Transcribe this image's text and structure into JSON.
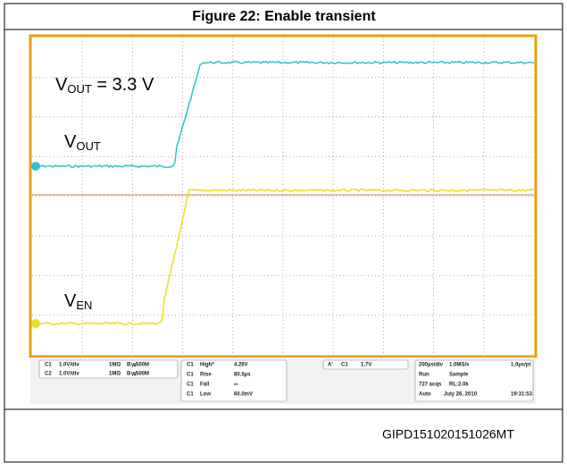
{
  "header": {
    "title": "Figure 22: Enable transient"
  },
  "scope": {
    "vout_level": {
      "v": "V",
      "sub": "OUT",
      "suffix": " = 3.3 V"
    },
    "vout": {
      "v": "V",
      "sub": "OUT"
    },
    "ven": {
      "v": "V",
      "sub": "EN"
    },
    "channels": [
      [
        "C1",
        "1.0V/div",
        "1MΩ",
        "B",
        "W",
        "500M"
      ],
      [
        "C2",
        "1.0V/div",
        "1MΩ",
        "B",
        "W",
        "500M"
      ]
    ],
    "measurements": [
      [
        "C1",
        "High*",
        "4.26V"
      ],
      [
        "C1",
        "Rise",
        "80.5µs"
      ],
      [
        "C1",
        "Fall",
        "∞"
      ],
      [
        "C1",
        "Low",
        "60.0mV"
      ]
    ],
    "trigger": [
      "A'",
      "C1",
      "1.7V"
    ],
    "timebase": [
      [
        "200µs/div",
        "1.0MS/s",
        "1.0µs/pt"
      ],
      [
        "Run",
        "Sample"
      ],
      [
        "727 acqs",
        "RL:2.0k"
      ],
      [
        "Auto",
        "July 26, 2010",
        "19:31:53"
      ]
    ]
  },
  "footer": {
    "code": "GIPD151020151026MT"
  }
}
